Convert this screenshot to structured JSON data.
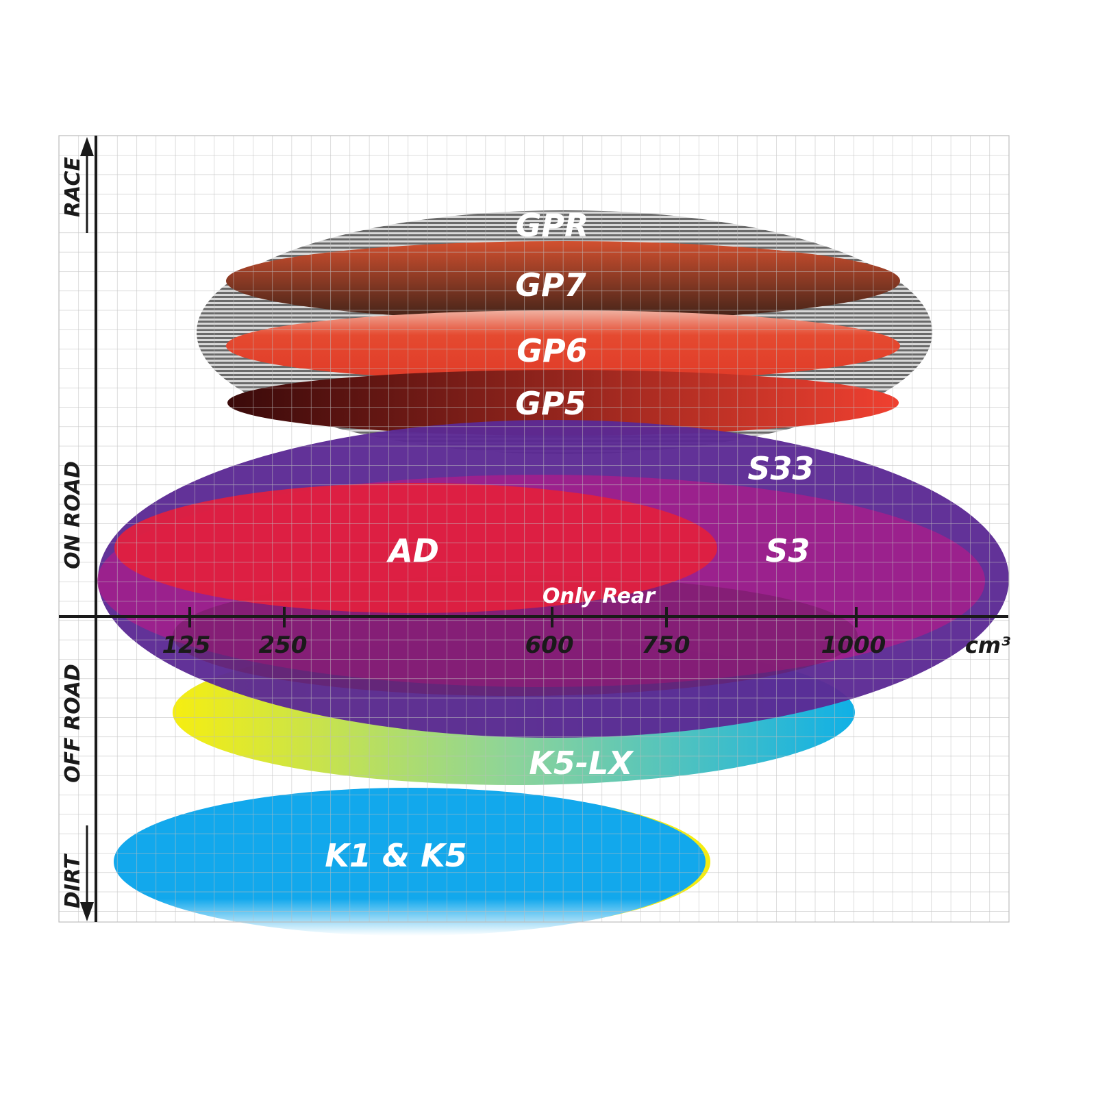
{
  "y_axis": {
    "labels": [
      "RACE",
      "ON ROAD",
      "OFF ROAD",
      "DIRT"
    ]
  },
  "x_axis": {
    "ticks": [
      "125",
      "250",
      "600",
      "750",
      "1000"
    ],
    "unit": "cm³"
  },
  "products": {
    "gpr": "GPR",
    "gp7": "GP7",
    "gp6": "GP6",
    "gp5": "GP5",
    "s33": "S33",
    "s3": "S3",
    "ad": "AD",
    "only_rear": "Only Rear",
    "k5lx": "K5-LX",
    "k1k5": "K1 & K5"
  },
  "colors": {
    "gpr": "#9a9a9a",
    "gp7": "#b8442c",
    "gp6": "#e2462e",
    "gp5": "#7a1414",
    "s33": "#5c2a94",
    "s3": "#a0208c",
    "ad": "#e0203f",
    "k5lx_start": "#f4ec10",
    "k5lx_end": "#10b4e0",
    "k1k5": "#10a8ec"
  }
}
